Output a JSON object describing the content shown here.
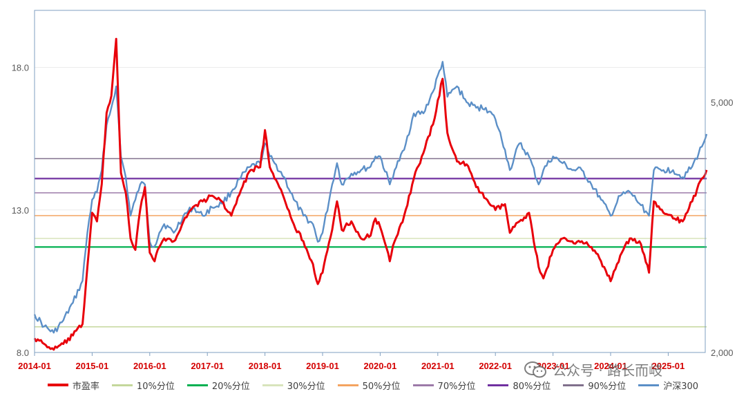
{
  "chart_data": {
    "type": "line",
    "x_ticks": [
      "2014-01",
      "2015-01",
      "2016-01",
      "2017-01",
      "2018-01",
      "2019-01",
      "2020-01",
      "2021-01",
      "2022-01",
      "2023-01",
      "2024-01",
      "2025-01"
    ],
    "x_range": [
      "2014-01",
      "2025-09"
    ],
    "y_left": {
      "ticks": [
        "8.0",
        "13.0",
        "18.0"
      ],
      "range": [
        8.0,
        20.0
      ]
    },
    "y_right": {
      "ticks": [
        "2,000",
        "5,000"
      ],
      "scale": "log",
      "range": [
        2000,
        7000
      ]
    },
    "grid": "horizontal",
    "legend_position": "bottom",
    "series": [
      {
        "name": "市盈率",
        "axis": "left",
        "color": "#e8000b",
        "points": [
          [
            "2014-01",
            8.5
          ],
          [
            "2014-03",
            8.3
          ],
          [
            "2014-05",
            8.1
          ],
          [
            "2014-07",
            8.3
          ],
          [
            "2014-09",
            8.6
          ],
          [
            "2014-11",
            9.0
          ],
          [
            "2014-12",
            11.0
          ],
          [
            "2015-01",
            12.9
          ],
          [
            "2015-02",
            12.6
          ],
          [
            "2015-03",
            13.9
          ],
          [
            "2015-04",
            16.4
          ],
          [
            "2015-05",
            17.0
          ],
          [
            "2015-06",
            19.0
          ],
          [
            "2015-07",
            14.3
          ],
          [
            "2015-08",
            13.6
          ],
          [
            "2015-09",
            12.0
          ],
          [
            "2015-10",
            11.6
          ],
          [
            "2015-11",
            13.0
          ],
          [
            "2015-12",
            13.8
          ],
          [
            "2016-01",
            11.5
          ],
          [
            "2016-02",
            11.2
          ],
          [
            "2016-03",
            11.7
          ],
          [
            "2016-04",
            12.0
          ],
          [
            "2016-06",
            11.9
          ],
          [
            "2016-08",
            12.6
          ],
          [
            "2016-10",
            13.1
          ],
          [
            "2016-12",
            13.3
          ],
          [
            "2017-02",
            13.5
          ],
          [
            "2017-04",
            13.3
          ],
          [
            "2017-06",
            12.8
          ],
          [
            "2017-08",
            13.7
          ],
          [
            "2017-10",
            14.4
          ],
          [
            "2017-12",
            14.5
          ],
          [
            "2018-01",
            15.8
          ],
          [
            "2018-02",
            14.5
          ],
          [
            "2018-03",
            14.1
          ],
          [
            "2018-05",
            13.4
          ],
          [
            "2018-07",
            12.5
          ],
          [
            "2018-09",
            11.9
          ],
          [
            "2018-11",
            11.1
          ],
          [
            "2018-12",
            10.4
          ],
          [
            "2019-01",
            10.8
          ],
          [
            "2019-03",
            12.3
          ],
          [
            "2019-04",
            13.3
          ],
          [
            "2019-05",
            12.3
          ],
          [
            "2019-07",
            12.6
          ],
          [
            "2019-09",
            12.0
          ],
          [
            "2019-11",
            12.1
          ],
          [
            "2019-12",
            12.7
          ],
          [
            "2020-01",
            12.4
          ],
          [
            "2020-03",
            11.2
          ],
          [
            "2020-04",
            11.9
          ],
          [
            "2020-06",
            12.8
          ],
          [
            "2020-08",
            14.1
          ],
          [
            "2020-10",
            15.0
          ],
          [
            "2020-12",
            16.0
          ],
          [
            "2021-02",
            17.6
          ],
          [
            "2021-03",
            15.7
          ],
          [
            "2021-05",
            14.7
          ],
          [
            "2021-07",
            14.6
          ],
          [
            "2021-09",
            13.8
          ],
          [
            "2021-11",
            13.4
          ],
          [
            "2022-01",
            13.0
          ],
          [
            "2022-03",
            13.2
          ],
          [
            "2022-04",
            12.2
          ],
          [
            "2022-06",
            12.6
          ],
          [
            "2022-08",
            12.9
          ],
          [
            "2022-10",
            11.0
          ],
          [
            "2022-11",
            10.6
          ],
          [
            "2023-01",
            11.6
          ],
          [
            "2023-03",
            12.0
          ],
          [
            "2023-05",
            11.9
          ],
          [
            "2023-07",
            11.9
          ],
          [
            "2023-09",
            11.7
          ],
          [
            "2023-11",
            11.2
          ],
          [
            "2024-01",
            10.5
          ],
          [
            "2024-03",
            11.4
          ],
          [
            "2024-05",
            12.0
          ],
          [
            "2024-07",
            11.9
          ],
          [
            "2024-09",
            10.8
          ],
          [
            "2024-10",
            13.3
          ],
          [
            "2024-12",
            12.9
          ],
          [
            "2025-02",
            12.7
          ],
          [
            "2025-04",
            12.6
          ],
          [
            "2025-06",
            13.3
          ],
          [
            "2025-08",
            14.1
          ],
          [
            "2025-09",
            14.4
          ]
        ]
      },
      {
        "name": "10%分位",
        "axis": "left",
        "color": "#c4d79b",
        "constant": 8.9
      },
      {
        "name": "20%分位",
        "axis": "left",
        "color": "#00b050",
        "constant": 11.7
      },
      {
        "name": "30%分位",
        "axis": "left",
        "color": "#d8e4bc",
        "constant": 12.0
      },
      {
        "name": "50%分位",
        "axis": "left",
        "color": "#f4a460",
        "constant": 12.8
      },
      {
        "name": "70%分位",
        "axis": "left",
        "color": "#9c7aa8",
        "constant": 13.6
      },
      {
        "name": "80%分位",
        "axis": "left",
        "color": "#7030a0",
        "constant": 14.1
      },
      {
        "name": "90%分位",
        "axis": "left",
        "color": "#80708c",
        "constant": 14.8
      },
      {
        "name": "沪深300",
        "axis": "right",
        "color": "#5b8fc7",
        "points": [
          [
            "2014-01",
            2300
          ],
          [
            "2014-03",
            2200
          ],
          [
            "2014-05",
            2150
          ],
          [
            "2014-07",
            2250
          ],
          [
            "2014-09",
            2400
          ],
          [
            "2014-11",
            2600
          ],
          [
            "2014-12",
            3100
          ],
          [
            "2015-01",
            3500
          ],
          [
            "2015-02",
            3600
          ],
          [
            "2015-03",
            3900
          ],
          [
            "2015-04",
            4600
          ],
          [
            "2015-05",
            4900
          ],
          [
            "2015-06",
            5300
          ],
          [
            "2015-07",
            4100
          ],
          [
            "2015-08",
            3800
          ],
          [
            "2015-09",
            3300
          ],
          [
            "2015-10",
            3500
          ],
          [
            "2015-11",
            3700
          ],
          [
            "2015-12",
            3700
          ],
          [
            "2016-01",
            3000
          ],
          [
            "2016-02",
            2950
          ],
          [
            "2016-03",
            3100
          ],
          [
            "2016-04",
            3200
          ],
          [
            "2016-06",
            3100
          ],
          [
            "2016-08",
            3300
          ],
          [
            "2016-10",
            3400
          ],
          [
            "2016-12",
            3300
          ],
          [
            "2017-02",
            3400
          ],
          [
            "2017-04",
            3450
          ],
          [
            "2017-06",
            3600
          ],
          [
            "2017-08",
            3800
          ],
          [
            "2017-10",
            3950
          ],
          [
            "2017-12",
            4000
          ],
          [
            "2018-01",
            4300
          ],
          [
            "2018-02",
            4100
          ],
          [
            "2018-03",
            4000
          ],
          [
            "2018-05",
            3800
          ],
          [
            "2018-07",
            3500
          ],
          [
            "2018-09",
            3300
          ],
          [
            "2018-11",
            3200
          ],
          [
            "2018-12",
            3000
          ],
          [
            "2019-01",
            3100
          ],
          [
            "2019-03",
            3700
          ],
          [
            "2019-04",
            4000
          ],
          [
            "2019-05",
            3700
          ],
          [
            "2019-07",
            3850
          ],
          [
            "2019-09",
            3900
          ],
          [
            "2019-11",
            3950
          ],
          [
            "2019-12",
            4100
          ],
          [
            "2020-01",
            4100
          ],
          [
            "2020-03",
            3700
          ],
          [
            "2020-04",
            3900
          ],
          [
            "2020-06",
            4200
          ],
          [
            "2020-08",
            4800
          ],
          [
            "2020-10",
            4800
          ],
          [
            "2020-12",
            5200
          ],
          [
            "2021-02",
            5800
          ],
          [
            "2021-03",
            5100
          ],
          [
            "2021-05",
            5300
          ],
          [
            "2021-07",
            5000
          ],
          [
            "2021-09",
            4900
          ],
          [
            "2021-11",
            4900
          ],
          [
            "2022-01",
            4700
          ],
          [
            "2022-03",
            4200
          ],
          [
            "2022-04",
            3900
          ],
          [
            "2022-06",
            4300
          ],
          [
            "2022-08",
            4100
          ],
          [
            "2022-10",
            3700
          ],
          [
            "2022-11",
            3900
          ],
          [
            "2023-01",
            4100
          ],
          [
            "2023-03",
            4000
          ],
          [
            "2023-05",
            3900
          ],
          [
            "2023-07",
            3900
          ],
          [
            "2023-09",
            3700
          ],
          [
            "2023-11",
            3500
          ],
          [
            "2024-01",
            3300
          ],
          [
            "2024-03",
            3550
          ],
          [
            "2024-05",
            3600
          ],
          [
            "2024-07",
            3450
          ],
          [
            "2024-09",
            3300
          ],
          [
            "2024-10",
            3900
          ],
          [
            "2024-12",
            3900
          ],
          [
            "2025-02",
            3900
          ],
          [
            "2025-04",
            3800
          ],
          [
            "2025-06",
            3950
          ],
          [
            "2025-08",
            4250
          ],
          [
            "2025-09",
            4450
          ]
        ]
      }
    ]
  },
  "watermark": {
    "text": "公众号 · 路长而岐",
    "icon": "wechat-icon"
  }
}
